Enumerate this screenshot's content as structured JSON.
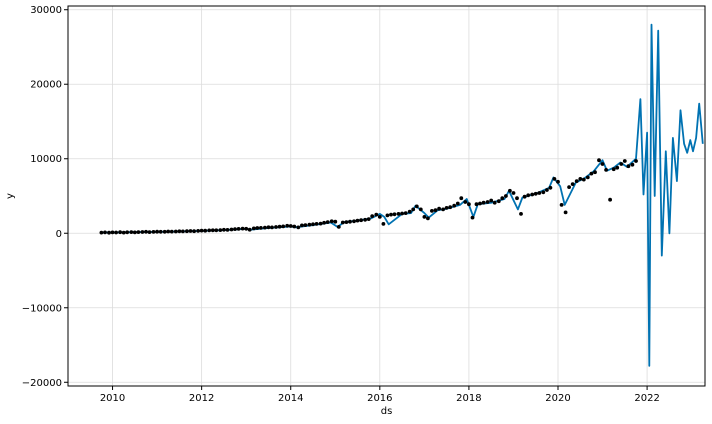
{
  "chart_data": {
    "type": "line",
    "title": "",
    "xlabel": "ds",
    "ylabel": "y",
    "xlim": [
      2009.0,
      2023.3
    ],
    "ylim": [
      -20500,
      30500
    ],
    "xticks": [
      2010,
      2012,
      2014,
      2016,
      2018,
      2020,
      2022
    ],
    "xtick_labels": [
      "2010",
      "2012",
      "2014",
      "2016",
      "2018",
      "2020",
      "2022"
    ],
    "yticks": [
      -20000,
      -10000,
      0,
      10000,
      20000,
      30000
    ],
    "ytick_labels": [
      "−20000",
      "−10000",
      "0",
      "10000",
      "20000",
      "30000"
    ],
    "grid": true,
    "colors": {
      "forecast": "#0072B2",
      "observed": "#000000",
      "grid": "#dcdcdc",
      "axes": "#000000"
    },
    "series": [
      {
        "kind": "line",
        "x": [
          2009.75,
          2010.0,
          2010.5,
          2011.0,
          2011.5,
          2012.0,
          2012.5,
          2013.0,
          2013.1,
          2013.5,
          2014.0,
          2014.1,
          2014.5,
          2014.9,
          2015.05,
          2015.2,
          2015.5,
          2015.8,
          2016.0,
          2016.1,
          2016.2,
          2016.5,
          2016.7,
          2016.8,
          2017.0,
          2017.1,
          2017.3,
          2017.5,
          2017.8,
          2017.95,
          2018.1,
          2018.2,
          2018.5,
          2018.8,
          2018.9,
          2019.1,
          2019.2,
          2019.5,
          2019.8,
          2019.9,
          2020.05,
          2020.15,
          2020.4,
          2020.6,
          2020.8,
          2021.0,
          2021.1,
          2021.25,
          2021.4,
          2021.55,
          2021.75,
          2021.85,
          2021.92,
          2022.0,
          2022.05,
          2022.1,
          2022.17,
          2022.25,
          2022.33,
          2022.42,
          2022.5,
          2022.58,
          2022.67,
          2022.75,
          2022.83
        ],
        "y": [
          100,
          100,
          150,
          180,
          230,
          320,
          420,
          580,
          480,
          700,
          900,
          800,
          1100,
          1450,
          850,
          1500,
          1700,
          2000,
          2600,
          2200,
          1200,
          2600,
          2700,
          3700,
          2700,
          2100,
          3100,
          3300,
          3800,
          4600,
          2200,
          3900,
          4100,
          4600,
          5700,
          3200,
          4800,
          5300,
          6100,
          7500,
          6300,
          3800,
          6800,
          7400,
          8300,
          9800,
          8400,
          8800,
          9500,
          8900,
          10000,
          18000,
          5200,
          13500,
          -17800,
          28000,
          5000,
          27200,
          -3000,
          11000,
          0,
          12800,
          7000,
          16500,
          12000
        ],
        "extra_tail_x": [
          2022.9,
          2022.97,
          2023.03,
          2023.1,
          2023.17,
          2023.25
        ],
        "extra_tail_y": [
          10800,
          12500,
          11000,
          12800,
          17400,
          12000
        ]
      },
      {
        "kind": "scatter",
        "x": [
          2009.75,
          2009.83,
          2009.92,
          2010.0,
          2010.08,
          2010.17,
          2010.25,
          2010.33,
          2010.42,
          2010.5,
          2010.58,
          2010.67,
          2010.75,
          2010.83,
          2010.92,
          2011.0,
          2011.08,
          2011.17,
          2011.25,
          2011.33,
          2011.42,
          2011.5,
          2011.58,
          2011.67,
          2011.75,
          2011.83,
          2011.92,
          2012.0,
          2012.08,
          2012.17,
          2012.25,
          2012.33,
          2012.42,
          2012.5,
          2012.58,
          2012.67,
          2012.75,
          2012.83,
          2012.92,
          2013.0,
          2013.08,
          2013.17,
          2013.25,
          2013.33,
          2013.42,
          2013.5,
          2013.58,
          2013.67,
          2013.75,
          2013.83,
          2013.92,
          2014.0,
          2014.08,
          2014.17,
          2014.25,
          2014.33,
          2014.42,
          2014.5,
          2014.58,
          2014.67,
          2014.75,
          2014.83,
          2014.92,
          2015.0,
          2015.08,
          2015.17,
          2015.25,
          2015.33,
          2015.42,
          2015.5,
          2015.58,
          2015.67,
          2015.75,
          2015.83,
          2015.92,
          2016.0,
          2016.08,
          2016.17,
          2016.25,
          2016.33,
          2016.42,
          2016.5,
          2016.58,
          2016.67,
          2016.75,
          2016.83,
          2016.92,
          2017.0,
          2017.08,
          2017.17,
          2017.25,
          2017.33,
          2017.42,
          2017.5,
          2017.58,
          2017.67,
          2017.75,
          2017.83,
          2017.92,
          2018.0,
          2018.08,
          2018.17,
          2018.25,
          2018.33,
          2018.42,
          2018.5,
          2018.58,
          2018.67,
          2018.75,
          2018.83,
          2018.92,
          2019.0,
          2019.08,
          2019.17,
          2019.25,
          2019.33,
          2019.42,
          2019.5,
          2019.58,
          2019.67,
          2019.75,
          2019.83,
          2019.92,
          2020.0,
          2020.08,
          2020.17,
          2020.25,
          2020.33,
          2020.42,
          2020.5,
          2020.58,
          2020.67,
          2020.75,
          2020.83,
          2020.92,
          2021.0,
          2021.08,
          2021.17,
          2021.25,
          2021.33,
          2021.42,
          2021.5,
          2021.58,
          2021.67,
          2021.75
        ],
        "y": [
          90,
          110,
          80,
          120,
          100,
          140,
          90,
          130,
          150,
          110,
          160,
          170,
          200,
          150,
          180,
          210,
          190,
          200,
          230,
          220,
          240,
          260,
          250,
          270,
          300,
          280,
          320,
          360,
          340,
          380,
          400,
          390,
          430,
          460,
          450,
          500,
          560,
          580,
          620,
          600,
          480,
          650,
          700,
          720,
          760,
          800,
          780,
          840,
          880,
          920,
          1000,
          980,
          900,
          780,
          1050,
          1100,
          1150,
          1200,
          1250,
          1300,
          1400,
          1500,
          1600,
          1550,
          850,
          1450,
          1500,
          1550,
          1600,
          1700,
          1750,
          1800,
          1900,
          2300,
          2500,
          2200,
          1250,
          2400,
          2500,
          2550,
          2600,
          2650,
          2700,
          2900,
          3200,
          3600,
          3200,
          2200,
          2000,
          3000,
          3100,
          3300,
          3200,
          3400,
          3500,
          3700,
          4000,
          4700,
          4200,
          3900,
          2100,
          3900,
          4000,
          4100,
          4200,
          4400,
          4100,
          4300,
          4700,
          5000,
          5700,
          5400,
          4700,
          2600,
          4900,
          5100,
          5200,
          5300,
          5400,
          5500,
          5800,
          6100,
          7300,
          6900,
          3800,
          2800,
          6200,
          6600,
          7000,
          7300,
          7200,
          7500,
          8000,
          8200,
          9800,
          9300,
          8500,
          4500,
          8600,
          8800,
          9300,
          9700,
          9000,
          9200,
          9700
        ]
      }
    ]
  }
}
